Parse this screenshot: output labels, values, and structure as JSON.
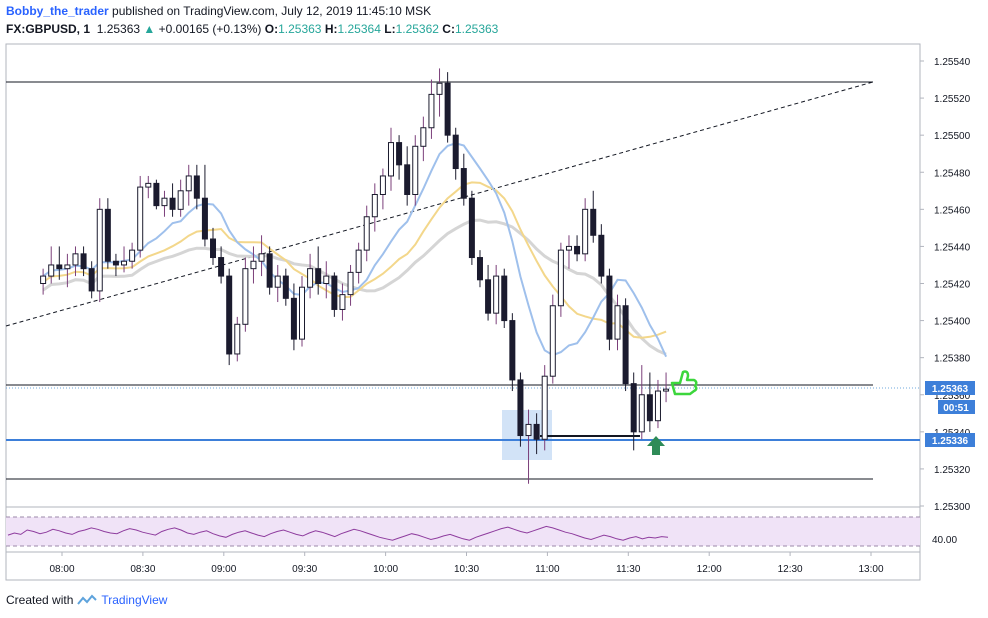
{
  "header": {
    "author": "Bobby_the_trader",
    "published": "published on TradingView.com, July 12, 2019 11:45:10 MSK",
    "symbol": "FX:GBPUSD, 1",
    "last": "1.25363",
    "change_arrow": "▲",
    "change": "+0.00165 (+0.13%)",
    "o_label": "O:",
    "o_value": "1.25363",
    "h_label": "H:",
    "h_value": "1.25364",
    "l_label": "L:",
    "l_value": "1.25362",
    "c_label": "C:",
    "c_value": "1.25363"
  },
  "footer": {
    "created_with": "Created with",
    "brand": "TradingView"
  },
  "colors": {
    "candle": "#1b1b2e",
    "candle_wick_up": "#7b3f7a",
    "ma_blue": "#9fc0ec",
    "ma_yellow": "#f3d78b",
    "ma_gray": "#d5d5d5",
    "hline_blue": "#3d7fd9",
    "rsi_line": "#8e3c9e",
    "rsi_fill": "#f0e3f7",
    "highlight": "#c7dcf5",
    "green_arrow": "#2e8b57",
    "thumb": "#3cd63c"
  },
  "icons": [
    "green-up-arrow-icon",
    "thumbs-up-icon",
    "tradingview-logo-icon"
  ],
  "chart_data": {
    "type": "candlestick",
    "timeframe": "1",
    "x_ticks": [
      "08:00",
      "08:30",
      "09:00",
      "09:30",
      "10:00",
      "10:30",
      "11:00",
      "11:30",
      "12:00",
      "12:30",
      "13:00"
    ],
    "y_ticks": [
      "1.25300",
      "1.25320",
      "1.25340",
      "1.25360",
      "1.25380",
      "1.25400",
      "1.25420",
      "1.25440",
      "1.25460",
      "1.25480",
      "1.25500",
      "1.25520",
      "1.25540"
    ],
    "ylim": [
      1.253,
      1.2555
    ],
    "price_labels": {
      "current": "1.25363",
      "countdown": "00:51",
      "support": "1.25336"
    },
    "rsi": {
      "label": "40.00",
      "upper": 70,
      "lower": 30,
      "values": [
        45,
        48,
        46,
        52,
        50,
        47,
        49,
        53,
        51,
        48,
        46,
        50,
        52,
        55,
        53,
        50,
        48,
        47,
        51,
        54,
        52,
        49,
        47,
        45,
        50,
        53,
        55,
        52,
        48,
        46,
        49,
        51,
        47,
        44,
        42,
        46,
        49,
        51,
        48,
        45,
        43,
        47,
        50,
        52,
        49,
        46,
        44,
        48,
        51,
        49,
        46,
        43,
        47,
        50,
        53,
        51,
        48,
        45,
        42,
        40,
        38,
        41,
        44,
        47,
        45,
        42,
        39,
        41,
        44,
        46,
        43,
        40,
        38,
        42,
        45,
        48,
        51,
        54,
        56,
        53,
        50,
        48,
        51,
        54,
        57,
        55,
        52,
        49,
        47,
        44,
        41,
        39,
        42,
        45,
        43,
        40,
        38,
        41,
        43,
        40,
        42,
        41,
        43,
        42
      ]
    },
    "candles": [
      {
        "t": "07:53",
        "o": 1.2542,
        "h": 1.25428,
        "l": 1.25414,
        "c": 1.25424
      },
      {
        "t": "07:56",
        "o": 1.25424,
        "h": 1.2544,
        "l": 1.2542,
        "c": 1.2543
      },
      {
        "t": "07:59",
        "o": 1.2543,
        "h": 1.2544,
        "l": 1.25422,
        "c": 1.25428
      },
      {
        "t": "08:02",
        "o": 1.25428,
        "h": 1.25436,
        "l": 1.25418,
        "c": 1.2543
      },
      {
        "t": "08:05",
        "o": 1.2543,
        "h": 1.2544,
        "l": 1.25424,
        "c": 1.25436
      },
      {
        "t": "08:08",
        "o": 1.25436,
        "h": 1.2544,
        "l": 1.25424,
        "c": 1.25428
      },
      {
        "t": "08:11",
        "o": 1.25428,
        "h": 1.25432,
        "l": 1.25412,
        "c": 1.25416
      },
      {
        "t": "08:14",
        "o": 1.25416,
        "h": 1.25466,
        "l": 1.2541,
        "c": 1.2546
      },
      {
        "t": "08:17",
        "o": 1.2546,
        "h": 1.25466,
        "l": 1.25428,
        "c": 1.25432
      },
      {
        "t": "08:20",
        "o": 1.25432,
        "h": 1.25436,
        "l": 1.25424,
        "c": 1.2543
      },
      {
        "t": "08:23",
        "o": 1.2543,
        "h": 1.2544,
        "l": 1.25426,
        "c": 1.25432
      },
      {
        "t": "08:26",
        "o": 1.25432,
        "h": 1.25442,
        "l": 1.25428,
        "c": 1.25438
      },
      {
        "t": "08:29",
        "o": 1.25438,
        "h": 1.25478,
        "l": 1.25434,
        "c": 1.25472
      },
      {
        "t": "08:32",
        "o": 1.25472,
        "h": 1.25478,
        "l": 1.25466,
        "c": 1.25474
      },
      {
        "t": "08:35",
        "o": 1.25474,
        "h": 1.25476,
        "l": 1.2546,
        "c": 1.25462
      },
      {
        "t": "08:38",
        "o": 1.25462,
        "h": 1.2547,
        "l": 1.25456,
        "c": 1.25466
      },
      {
        "t": "08:41",
        "o": 1.25466,
        "h": 1.25474,
        "l": 1.25456,
        "c": 1.2546
      },
      {
        "t": "08:44",
        "o": 1.2546,
        "h": 1.25476,
        "l": 1.25456,
        "c": 1.2547
      },
      {
        "t": "08:47",
        "o": 1.2547,
        "h": 1.25484,
        "l": 1.25462,
        "c": 1.25478
      },
      {
        "t": "08:50",
        "o": 1.25478,
        "h": 1.25484,
        "l": 1.2546,
        "c": 1.25466
      },
      {
        "t": "08:53",
        "o": 1.25466,
        "h": 1.25484,
        "l": 1.2544,
        "c": 1.25444
      },
      {
        "t": "08:56",
        "o": 1.25444,
        "h": 1.2545,
        "l": 1.2543,
        "c": 1.25434
      },
      {
        "t": "08:59",
        "o": 1.25434,
        "h": 1.2544,
        "l": 1.2542,
        "c": 1.25424
      },
      {
        "t": "09:02",
        "o": 1.25424,
        "h": 1.25428,
        "l": 1.25376,
        "c": 1.25382
      },
      {
        "t": "09:05",
        "o": 1.25382,
        "h": 1.25402,
        "l": 1.25378,
        "c": 1.25398
      },
      {
        "t": "09:08",
        "o": 1.25398,
        "h": 1.25434,
        "l": 1.25394,
        "c": 1.25428
      },
      {
        "t": "09:11",
        "o": 1.25428,
        "h": 1.2544,
        "l": 1.2542,
        "c": 1.25432
      },
      {
        "t": "09:14",
        "o": 1.25432,
        "h": 1.25446,
        "l": 1.25424,
        "c": 1.25436
      },
      {
        "t": "09:17",
        "o": 1.25436,
        "h": 1.2544,
        "l": 1.25414,
        "c": 1.25418
      },
      {
        "t": "09:20",
        "o": 1.25418,
        "h": 1.2543,
        "l": 1.2541,
        "c": 1.25424
      },
      {
        "t": "09:23",
        "o": 1.25424,
        "h": 1.25428,
        "l": 1.25408,
        "c": 1.25412
      },
      {
        "t": "09:26",
        "o": 1.25412,
        "h": 1.2542,
        "l": 1.25384,
        "c": 1.2539
      },
      {
        "t": "09:29",
        "o": 1.2539,
        "h": 1.25424,
        "l": 1.25386,
        "c": 1.25418
      },
      {
        "t": "09:32",
        "o": 1.25418,
        "h": 1.25436,
        "l": 1.25412,
        "c": 1.25428
      },
      {
        "t": "09:35",
        "o": 1.25428,
        "h": 1.2544,
        "l": 1.25414,
        "c": 1.2542
      },
      {
        "t": "09:38",
        "o": 1.2542,
        "h": 1.25432,
        "l": 1.25412,
        "c": 1.25424
      },
      {
        "t": "09:41",
        "o": 1.25424,
        "h": 1.25426,
        "l": 1.25402,
        "c": 1.25406
      },
      {
        "t": "09:44",
        "o": 1.25406,
        "h": 1.2542,
        "l": 1.254,
        "c": 1.25414
      },
      {
        "t": "09:47",
        "o": 1.25414,
        "h": 1.2543,
        "l": 1.25408,
        "c": 1.25426
      },
      {
        "t": "09:50",
        "o": 1.25426,
        "h": 1.25442,
        "l": 1.2542,
        "c": 1.25438
      },
      {
        "t": "09:53",
        "o": 1.25438,
        "h": 1.25462,
        "l": 1.25432,
        "c": 1.25456
      },
      {
        "t": "09:56",
        "o": 1.25456,
        "h": 1.25474,
        "l": 1.25448,
        "c": 1.25468
      },
      {
        "t": "09:59",
        "o": 1.25468,
        "h": 1.25482,
        "l": 1.2546,
        "c": 1.25478
      },
      {
        "t": "10:02",
        "o": 1.25478,
        "h": 1.25504,
        "l": 1.2547,
        "c": 1.25496
      },
      {
        "t": "10:05",
        "o": 1.25496,
        "h": 1.255,
        "l": 1.25476,
        "c": 1.25484
      },
      {
        "t": "10:08",
        "o": 1.25484,
        "h": 1.25494,
        "l": 1.25462,
        "c": 1.25468
      },
      {
        "t": "10:11",
        "o": 1.25468,
        "h": 1.255,
        "l": 1.25462,
        "c": 1.25494
      },
      {
        "t": "10:14",
        "o": 1.25494,
        "h": 1.2551,
        "l": 1.25486,
        "c": 1.25504
      },
      {
        "t": "10:17",
        "o": 1.25504,
        "h": 1.2553,
        "l": 1.25498,
        "c": 1.25522
      },
      {
        "t": "10:20",
        "o": 1.25522,
        "h": 1.25536,
        "l": 1.2551,
        "c": 1.25528
      },
      {
        "t": "10:23",
        "o": 1.25528,
        "h": 1.25534,
        "l": 1.25496,
        "c": 1.255
      },
      {
        "t": "10:26",
        "o": 1.255,
        "h": 1.25504,
        "l": 1.25476,
        "c": 1.25482
      },
      {
        "t": "10:29",
        "o": 1.25482,
        "h": 1.2549,
        "l": 1.25462,
        "c": 1.25466
      },
      {
        "t": "10:32",
        "o": 1.25466,
        "h": 1.2547,
        "l": 1.2543,
        "c": 1.25434
      },
      {
        "t": "10:35",
        "o": 1.25434,
        "h": 1.25438,
        "l": 1.25418,
        "c": 1.25422
      },
      {
        "t": "10:38",
        "o": 1.25422,
        "h": 1.2543,
        "l": 1.254,
        "c": 1.25404
      },
      {
        "t": "10:41",
        "o": 1.25404,
        "h": 1.2543,
        "l": 1.25398,
        "c": 1.25424
      },
      {
        "t": "10:44",
        "o": 1.25424,
        "h": 1.25428,
        "l": 1.25396,
        "c": 1.254
      },
      {
        "t": "10:47",
        "o": 1.254,
        "h": 1.25404,
        "l": 1.25362,
        "c": 1.25368
      },
      {
        "t": "10:50",
        "o": 1.25368,
        "h": 1.25372,
        "l": 1.25332,
        "c": 1.25338
      },
      {
        "t": "10:53",
        "o": 1.25338,
        "h": 1.25352,
        "l": 1.25312,
        "c": 1.25344
      },
      {
        "t": "10:56",
        "o": 1.25344,
        "h": 1.2535,
        "l": 1.25328,
        "c": 1.25336
      },
      {
        "t": "10:59",
        "o": 1.25336,
        "h": 1.25376,
        "l": 1.2533,
        "c": 1.2537
      },
      {
        "t": "11:02",
        "o": 1.2537,
        "h": 1.25414,
        "l": 1.25366,
        "c": 1.25408
      },
      {
        "t": "11:05",
        "o": 1.25408,
        "h": 1.25442,
        "l": 1.25402,
        "c": 1.25438
      },
      {
        "t": "11:08",
        "o": 1.25438,
        "h": 1.25446,
        "l": 1.25428,
        "c": 1.2544
      },
      {
        "t": "11:11",
        "o": 1.2544,
        "h": 1.25446,
        "l": 1.25432,
        "c": 1.25436
      },
      {
        "t": "11:14",
        "o": 1.25436,
        "h": 1.25466,
        "l": 1.25432,
        "c": 1.2546
      },
      {
        "t": "11:17",
        "o": 1.2546,
        "h": 1.2547,
        "l": 1.25442,
        "c": 1.25446
      },
      {
        "t": "11:20",
        "o": 1.25446,
        "h": 1.25452,
        "l": 1.2542,
        "c": 1.25424
      },
      {
        "t": "11:23",
        "o": 1.25424,
        "h": 1.25428,
        "l": 1.25384,
        "c": 1.2539
      },
      {
        "t": "11:26",
        "o": 1.2539,
        "h": 1.25414,
        "l": 1.25384,
        "c": 1.25408
      },
      {
        "t": "11:29",
        "o": 1.25408,
        "h": 1.25412,
        "l": 1.25362,
        "c": 1.25366
      },
      {
        "t": "11:32",
        "o": 1.25366,
        "h": 1.25372,
        "l": 1.2533,
        "c": 1.2534
      },
      {
        "t": "11:35",
        "o": 1.2534,
        "h": 1.25376,
        "l": 1.25336,
        "c": 1.2536
      },
      {
        "t": "11:38",
        "o": 1.2536,
        "h": 1.25372,
        "l": 1.2534,
        "c": 1.25346
      },
      {
        "t": "11:41",
        "o": 1.25346,
        "h": 1.25368,
        "l": 1.25342,
        "c": 1.25362
      },
      {
        "t": "11:44",
        "o": 1.25362,
        "h": 1.25372,
        "l": 1.25356,
        "c": 1.25363
      }
    ]
  }
}
